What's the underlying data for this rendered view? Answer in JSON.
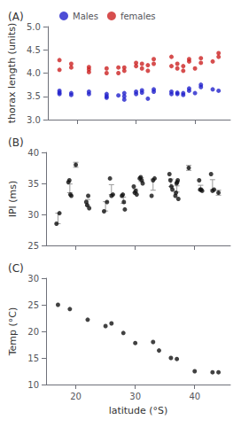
{
  "chart_data": [
    {
      "type": "scatter",
      "title": "(A)",
      "ylabel": "thorax length (units)",
      "xlim": [
        15,
        46
      ],
      "xticks": [
        20,
        30,
        40
      ],
      "ylim": [
        3.0,
        5.0
      ],
      "yticks": [
        {
          "value": 3.0,
          "label": "3.0"
        },
        3.5,
        {
          "value": 4.0,
          "label": "4.0"
        },
        4.5,
        {
          "value": 5.0,
          "label": "5.0"
        }
      ],
      "tick_labels": "y",
      "grid": false,
      "legend": "top",
      "series": [
        {
          "name": "Males",
          "color": "#2222cc",
          "x": [
            17,
            17,
            17,
            19,
            19,
            22,
            22,
            25,
            25,
            25,
            27,
            28,
            28,
            28,
            30,
            30,
            31,
            31,
            32,
            33,
            33,
            36,
            36,
            37,
            37,
            38,
            38,
            39,
            39,
            40,
            41,
            41,
            43,
            44
          ],
          "values": [
            3.55,
            3.58,
            3.62,
            3.53,
            3.57,
            3.55,
            3.6,
            3.47,
            3.5,
            3.55,
            3.52,
            3.43,
            3.5,
            3.57,
            3.55,
            3.6,
            3.58,
            3.63,
            3.45,
            3.6,
            3.65,
            3.55,
            3.6,
            3.55,
            3.58,
            3.53,
            3.57,
            3.62,
            3.67,
            3.57,
            3.7,
            3.75,
            3.65,
            3.62
          ]
        },
        {
          "name": "females",
          "color": "#cc2222",
          "x": [
            17,
            17,
            19,
            19,
            22,
            22,
            22,
            25,
            25,
            27,
            27,
            28,
            28,
            30,
            30,
            31,
            31,
            32,
            32,
            33,
            33,
            36,
            36,
            37,
            37,
            38,
            38,
            39,
            39,
            40,
            41,
            41,
            43,
            44,
            44
          ],
          "values": [
            4.07,
            4.28,
            4.12,
            4.2,
            4.02,
            4.08,
            4.13,
            4.0,
            4.1,
            4.0,
            4.12,
            4.05,
            4.12,
            4.15,
            4.22,
            4.1,
            4.2,
            4.05,
            4.17,
            4.2,
            4.3,
            4.15,
            4.35,
            4.1,
            4.2,
            4.05,
            4.15,
            4.25,
            4.3,
            4.1,
            4.22,
            4.32,
            4.25,
            4.35,
            4.43
          ]
        }
      ]
    },
    {
      "type": "scatter",
      "title": "(B)",
      "ylabel": "IPI (ms)",
      "xlim": [
        15,
        46
      ],
      "xticks": [
        20,
        30,
        40
      ],
      "ylim": [
        25,
        40
      ],
      "yticks": [
        25,
        30,
        35,
        40
      ],
      "tick_labels": "y",
      "grid": false,
      "color": "#111111",
      "x": [
        17,
        19,
        20,
        22,
        25,
        26,
        28,
        30,
        31,
        33,
        36,
        37,
        39,
        41,
        43,
        44
      ],
      "values": [
        [
          28.5,
          30.2
        ],
        [
          35.2,
          35.5,
          33.2,
          33.0
        ],
        [
          38.0
        ],
        [
          32.0,
          31.5,
          33.0,
          31.0
        ],
        [
          30.5,
          32.0
        ],
        [
          35.8,
          33.0,
          33.2
        ],
        [
          33.0,
          33.2,
          32.0,
          30.8
        ],
        [
          34.5,
          33.5,
          33.8,
          33.2
        ],
        [
          35.8,
          36.0,
          35.5,
          35.0
        ],
        [
          33.0,
          35.5,
          35.8
        ],
        [
          36.5,
          35.5,
          34.5,
          34.0
        ],
        [
          33.0,
          33.5,
          35.0,
          35.2,
          35.5,
          32.5
        ],
        [
          37.5
        ],
        [
          35.5,
          34.0,
          34.0,
          33.8
        ],
        [
          36.5,
          33.8,
          34.0
        ],
        [
          33.5
        ]
      ],
      "mean": [
        29.35,
        34.2,
        38.0,
        31.9,
        31.3,
        34.0,
        32.3,
        33.8,
        35.6,
        34.8,
        35.1,
        34.1,
        37.5,
        34.3,
        34.8,
        33.5
      ],
      "sem": [
        0.85,
        0.7,
        0.4,
        0.5,
        0.75,
        0.8,
        0.5,
        0.3,
        0.3,
        0.9,
        0.6,
        0.5,
        0.4,
        0.4,
        0.8,
        0.4
      ]
    },
    {
      "type": "scatter",
      "title": "(C)",
      "ylabel": "Temp (°C)",
      "xlabel": "latitude (°S)",
      "xlim": [
        15,
        46
      ],
      "xticks": [
        20,
        30,
        40
      ],
      "ylim": [
        10,
        30
      ],
      "yticks": [
        10,
        15,
        20,
        25,
        30
      ],
      "grid": false,
      "color": "#111111",
      "x": [
        17,
        19,
        22,
        25,
        26,
        28,
        30,
        33,
        34,
        36,
        37,
        40,
        43,
        44
      ],
      "values": [
        25.0,
        24.2,
        22.2,
        21.0,
        21.5,
        19.7,
        17.8,
        18.0,
        16.4,
        15.0,
        14.8,
        12.5,
        12.3,
        12.3
      ]
    }
  ]
}
